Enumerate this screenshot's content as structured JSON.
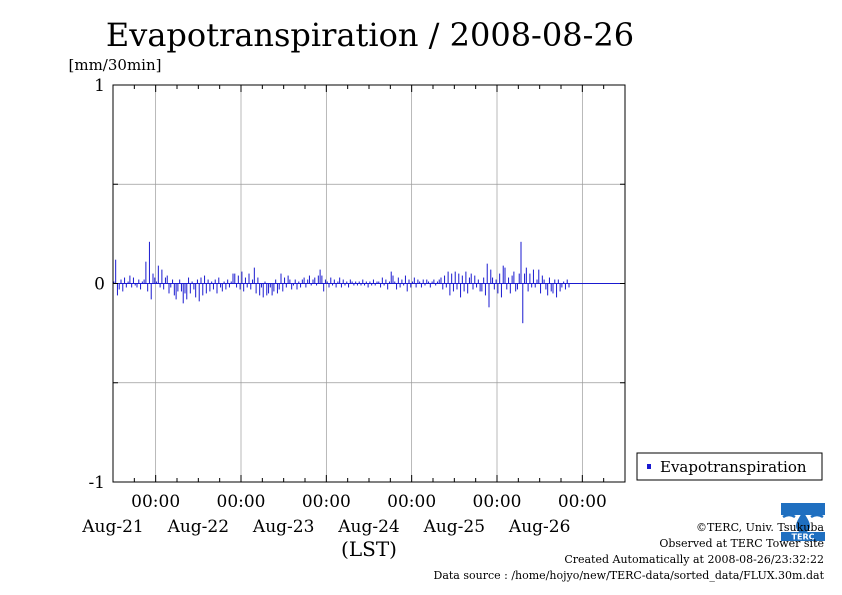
{
  "chart_data": {
    "type": "bar",
    "title": "Evapotranspiration / 2008-08-26",
    "ylabel": "[mm/30min]",
    "xlabel": "(LST)",
    "ylim": [
      -1,
      1
    ],
    "yticks": [
      {
        "v": 1,
        "label": "1"
      },
      {
        "v": 0,
        "label": "0"
      },
      {
        "v": -1,
        "label": "-1"
      }
    ],
    "xlim_hours": [
      0,
      144
    ],
    "x_unit": "hours from 2008-08-20 12:00 LST",
    "days": [
      {
        "hour": 12,
        "time_label": "00:00",
        "date_label": "Aug-21"
      },
      {
        "hour": 36,
        "time_label": "00:00",
        "date_label": "Aug-22"
      },
      {
        "hour": 60,
        "time_label": "00:00",
        "date_label": "Aug-23"
      },
      {
        "hour": 84,
        "time_label": "00:00",
        "date_label": "Aug-24"
      },
      {
        "hour": 108,
        "time_label": "00:00",
        "date_label": "Aug-25"
      },
      {
        "hour": 132,
        "time_label": "00:00",
        "date_label": "Aug-26"
      }
    ],
    "grid": true,
    "legend": "bottom-right outside",
    "series": [
      {
        "name": "Evapotranspiration",
        "color": "#1a1ad0",
        "interval_hours": 0.5,
        "values": [
          0.01,
          0.12,
          -0.06,
          -0.03,
          0.02,
          -0.04,
          0.03,
          -0.02,
          0.01,
          0.04,
          -0.02,
          0.03,
          -0.01,
          -0.02,
          0.02,
          -0.03,
          0.01,
          0.02,
          0.11,
          -0.04,
          0.21,
          -0.08,
          0.05,
          0.03,
          0.01,
          0.09,
          -0.02,
          0.07,
          -0.03,
          0.03,
          0.04,
          -0.05,
          -0.02,
          0.02,
          -0.06,
          -0.08,
          -0.04,
          0.02,
          -0.04,
          -0.1,
          -0.05,
          -0.08,
          0.03,
          -0.05,
          0.01,
          -0.03,
          -0.07,
          0.02,
          -0.09,
          0.03,
          -0.06,
          0.04,
          -0.05,
          0.02,
          -0.04,
          0.01,
          -0.03,
          0.02,
          -0.05,
          0.03,
          -0.02,
          -0.04,
          0.01,
          -0.03,
          0.02,
          -0.02,
          0.01,
          0.05,
          0.05,
          -0.02,
          0.04,
          -0.03,
          0.06,
          -0.04,
          0.03,
          -0.02,
          0.05,
          -0.03,
          0.02,
          0.08,
          -0.05,
          0.03,
          -0.06,
          -0.02,
          -0.07,
          0.01,
          -0.06,
          -0.05,
          -0.02,
          -0.06,
          -0.04,
          0.02,
          -0.05,
          -0.03,
          0.05,
          -0.04,
          0.03,
          -0.02,
          0.04,
          0.02,
          -0.03,
          -0.01,
          0.02,
          -0.03,
          0.01,
          -0.02,
          0.02,
          0.03,
          -0.02,
          0.02,
          0.04,
          -0.01,
          0.02,
          0.03,
          -0.01,
          0.04,
          0.07,
          0.04,
          -0.04,
          0.02,
          0.01,
          -0.02,
          0.03,
          -0.01,
          0.02,
          -0.02,
          0.01,
          0.03,
          -0.02,
          0.02,
          -0.01,
          0.01,
          -0.02,
          0.02,
          0.01,
          -0.01,
          0.01,
          -0.01,
          0.01,
          -0.01,
          0.02,
          -0.01,
          0.01,
          -0.02,
          0.01,
          -0.01,
          0.02,
          -0.01,
          0.01,
          0.01,
          -0.02,
          0.03,
          -0.01,
          0.02,
          -0.03,
          0.01,
          0.06,
          0.04,
          0.01,
          -0.03,
          0.03,
          -0.02,
          0.02,
          -0.01,
          0.04,
          -0.04,
          0.02,
          -0.02,
          0.01,
          0.03,
          -0.02,
          0.02,
          0.01,
          -0.02,
          0.02,
          -0.01,
          0.02,
          0.01,
          -0.02,
          0.01,
          0.02,
          -0.01,
          0.01,
          0.02,
          0.03,
          -0.03,
          0.04,
          -0.02,
          0.06,
          -0.06,
          0.05,
          -0.04,
          0.06,
          -0.03,
          0.05,
          -0.07,
          0.04,
          -0.04,
          0.06,
          -0.05,
          0.03,
          0.05,
          -0.03,
          0.04,
          -0.02,
          0.02,
          -0.04,
          -0.04,
          0.03,
          -0.06,
          0.1,
          -0.12,
          0.07,
          0.03,
          -0.03,
          0.02,
          -0.05,
          0.05,
          -0.07,
          0.09,
          0.08,
          -0.03,
          0.03,
          -0.05,
          0.04,
          0.06,
          -0.04,
          -0.03,
          0.05,
          0.21,
          -0.2,
          0.05,
          0.08,
          -0.04,
          0.05,
          -0.02,
          0.07,
          -0.02,
          0.02,
          0.07,
          -0.05,
          0.04,
          0.02,
          -0.03,
          -0.06,
          0.03,
          -0.04,
          -0.05,
          0.02,
          -0.07,
          0.02,
          -0.04,
          -0.02,
          0.01,
          -0.03,
          0.02,
          -0.02
        ]
      }
    ]
  },
  "credits": {
    "copyright": "©TERC, Univ. Tsukuba",
    "site": "Observed at TERC Tower site",
    "created": "Created Automatically at 2008-08-26/23:32:22",
    "source": "Data source : /home/hojyo/new/TERC-data/sorted_data/FLUX.30m.dat"
  },
  "logo": {
    "name": "terc-logo",
    "text": "TERC",
    "color": "#1f6fc0"
  }
}
